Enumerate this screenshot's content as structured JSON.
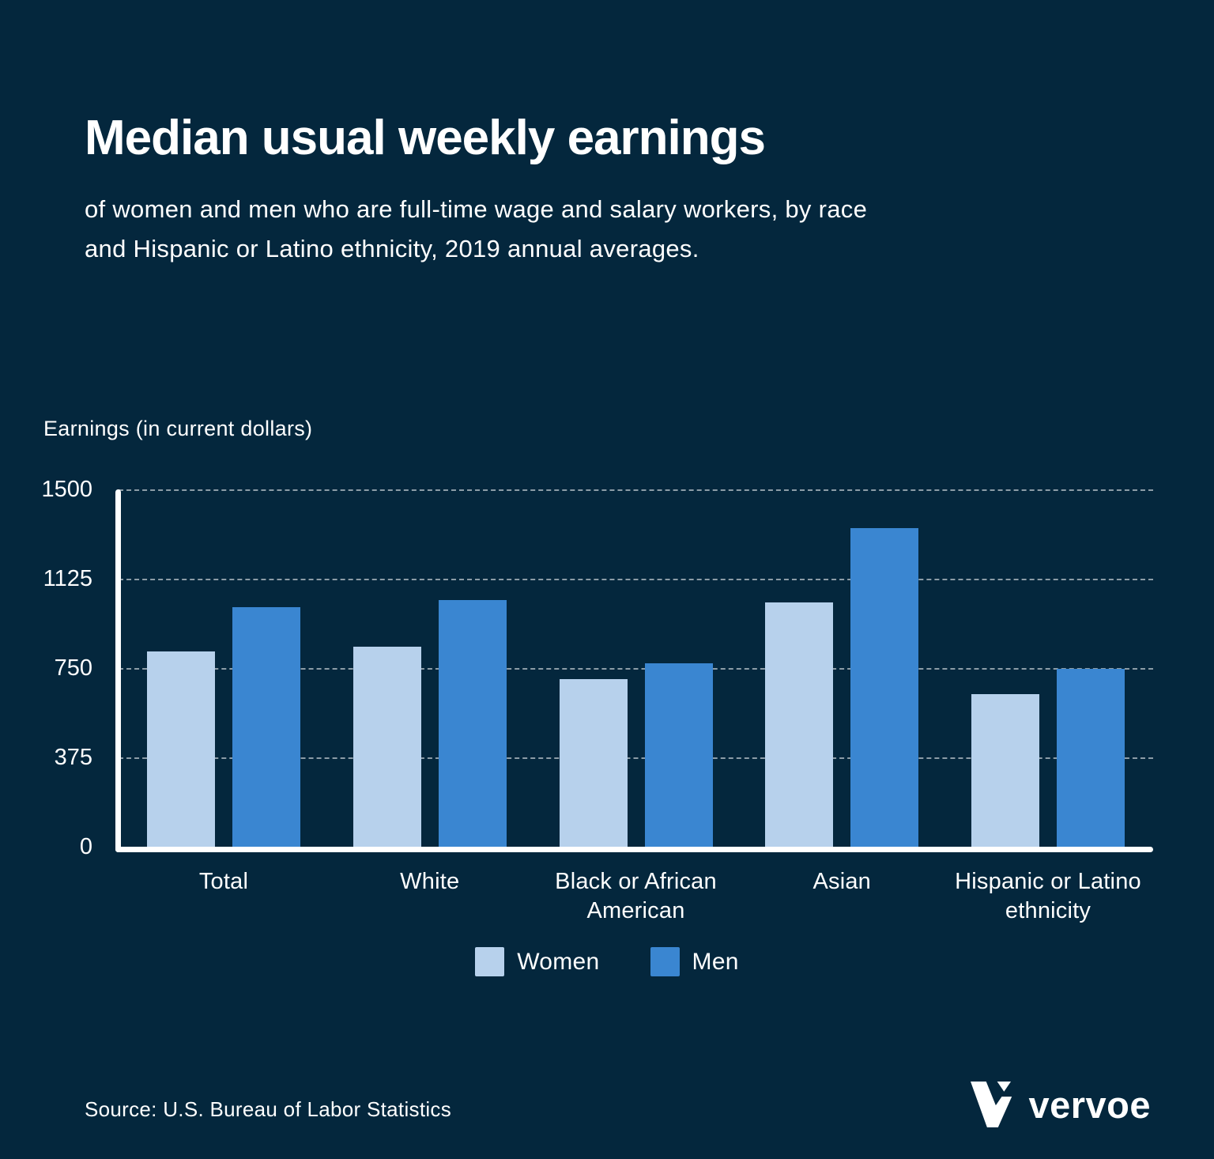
{
  "page": {
    "title": "Median usual weekly earnings",
    "subtitle": "of women and men who are full-time wage and salary workers, by race and Hispanic or Latino ethnicity, 2019 annual averages.",
    "source": "Source: U.S. Bureau of Labor Statistics",
    "brand": {
      "name": "vervoe",
      "mark": "vervoe-v-mark"
    },
    "colors": {
      "background": "#04273d",
      "text": "#ffffff",
      "axis": "#ffffff",
      "gridline": "rgba(255,255,255,0.55)"
    }
  },
  "chart_data": {
    "type": "bar",
    "title": "Median usual weekly earnings",
    "subtitle": "of women and men who are full-time wage and salary workers, by race and Hispanic or Latino ethnicity, 2019 annual averages.",
    "ylabel": "Earnings (in current dollars)",
    "xlabel": "",
    "ylim": [
      0,
      1500
    ],
    "yticks": [
      0,
      375,
      750,
      1125,
      1500
    ],
    "grid": "horizontal-dashed",
    "legend_position": "bottom-center",
    "categories": [
      "Total",
      "White",
      "Black or African American",
      "Asian",
      "Hispanic or Latino ethnicity"
    ],
    "series": [
      {
        "name": "Women",
        "color": "#b7d1ec",
        "values": [
          821,
          840,
          704,
          1025,
          642
        ]
      },
      {
        "name": "Men",
        "color": "#3a86d1",
        "values": [
          1007,
          1036,
          769,
          1336,
          747
        ]
      }
    ]
  }
}
